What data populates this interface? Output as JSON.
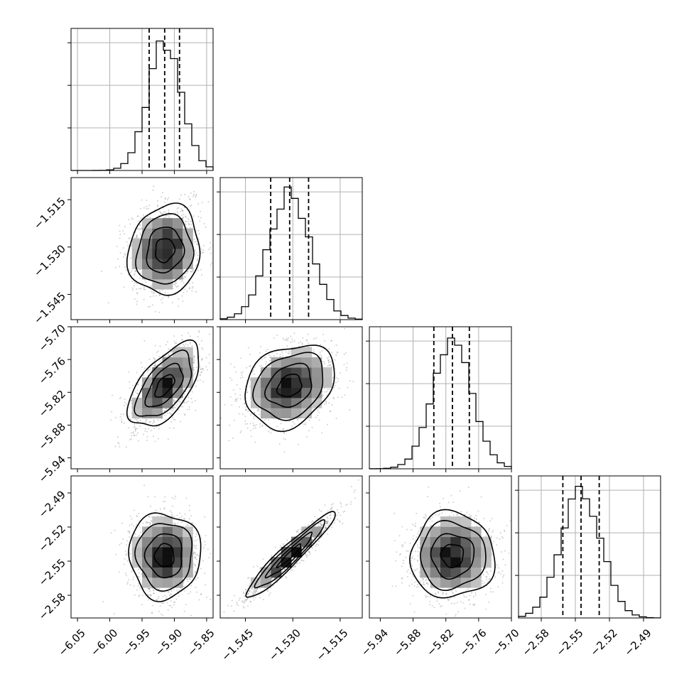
{
  "chart_data": {
    "type": "scatter",
    "subtype": "corner-plot",
    "title": "",
    "parameters": [
      {
        "index": 0,
        "median": -5.915,
        "q16": -5.939,
        "q84": -5.892,
        "range": [
          -6.06,
          -5.84
        ],
        "ticks": [
          -6.05,
          -6.0,
          -5.95,
          -5.9,
          -5.85
        ]
      },
      {
        "index": 1,
        "median": -1.531,
        "q16": -1.537,
        "q84": -1.525,
        "range": [
          -1.553,
          -1.508
        ],
        "ticks": [
          -1.545,
          -1.53,
          -1.515
        ]
      },
      {
        "index": 2,
        "median": -5.808,
        "q16": -5.842,
        "q84": -5.777,
        "range": [
          -5.96,
          -5.7
        ],
        "ticks": [
          -5.94,
          -5.88,
          -5.82,
          -5.76,
          -5.7
        ]
      },
      {
        "index": 3,
        "median": -2.545,
        "q16": -2.561,
        "q84": -2.529,
        "range": [
          -2.6,
          -2.475
        ],
        "ticks": [
          -2.58,
          -2.55,
          -2.52,
          -2.49
        ]
      }
    ],
    "tick_labels": {
      "param0": [
        "−6.05",
        "−6.00",
        "−5.95",
        "−5.90",
        "−5.85"
      ],
      "param1": [
        "−1.545",
        "−1.530",
        "−1.515"
      ],
      "param2": [
        "−5.94",
        "−5.88",
        "−5.82",
        "−5.76",
        "−5.70"
      ],
      "param3": [
        "−2.58",
        "−2.55",
        "−2.52",
        "−2.49"
      ]
    },
    "correlations": {
      "1-0": 0.1,
      "2-0": 0.6,
      "2-1": 0.25,
      "3-0": 0.0,
      "3-1": 0.95,
      "3-2": 0.0
    },
    "xlabel": "",
    "ylabel": "",
    "grid": true,
    "legend": "none"
  }
}
